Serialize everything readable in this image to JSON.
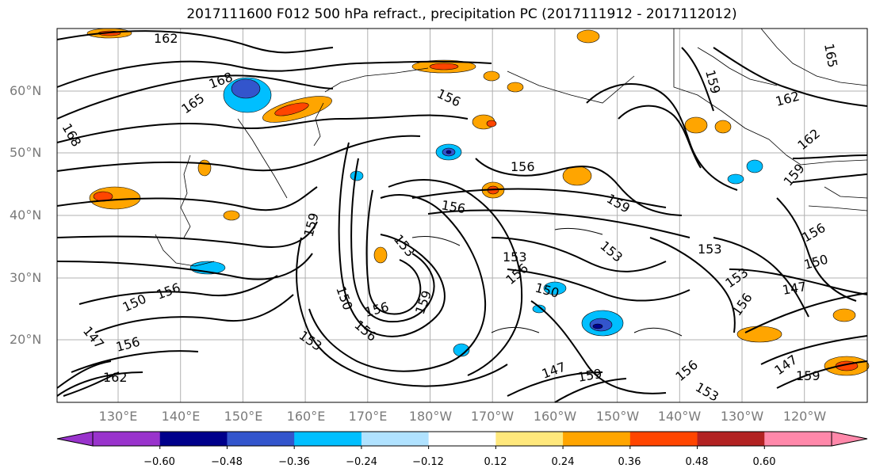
{
  "title": "2017111600 F012 500 hPa refract., precipitation PC (2017111912 - 2017112012)",
  "lat_labels": [
    "60°N",
    "50°N",
    "40°N",
    "30°N",
    "20°N"
  ],
  "lon_labels": [
    "130°E",
    "140°E",
    "150°E",
    "160°E",
    "170°E",
    "180°W",
    "170°W",
    "160°W",
    "150°W",
    "140°W",
    "130°W",
    "120°W"
  ],
  "contour_labels": [
    "162",
    "168",
    "165",
    "168",
    "156",
    "156",
    "159",
    "156",
    "159",
    "153",
    "153",
    "153",
    "156",
    "150",
    "159",
    "156",
    "150",
    "156",
    "159",
    "153",
    "162",
    "162",
    "165",
    "159",
    "159",
    "153",
    "156",
    "150",
    "153",
    "156",
    "147",
    "150",
    "156",
    "147",
    "156",
    "162",
    "153",
    "147",
    "156",
    "159",
    "147"
  ],
  "colorbar": {
    "ticks": [
      "−0.60",
      "−0.48",
      "−0.36",
      "−0.24",
      "−0.12",
      "0.12",
      "0.24",
      "0.36",
      "0.48",
      "0.60"
    ],
    "colors": [
      "#9933cc",
      "#00008b",
      "#3355cc",
      "#00bfff",
      "#b0e2ff",
      "#ffffff",
      "#ffe87c",
      "#ffa500",
      "#ff4500",
      "#b22222",
      "#ff88aa",
      "#ffffff"
    ]
  }
}
